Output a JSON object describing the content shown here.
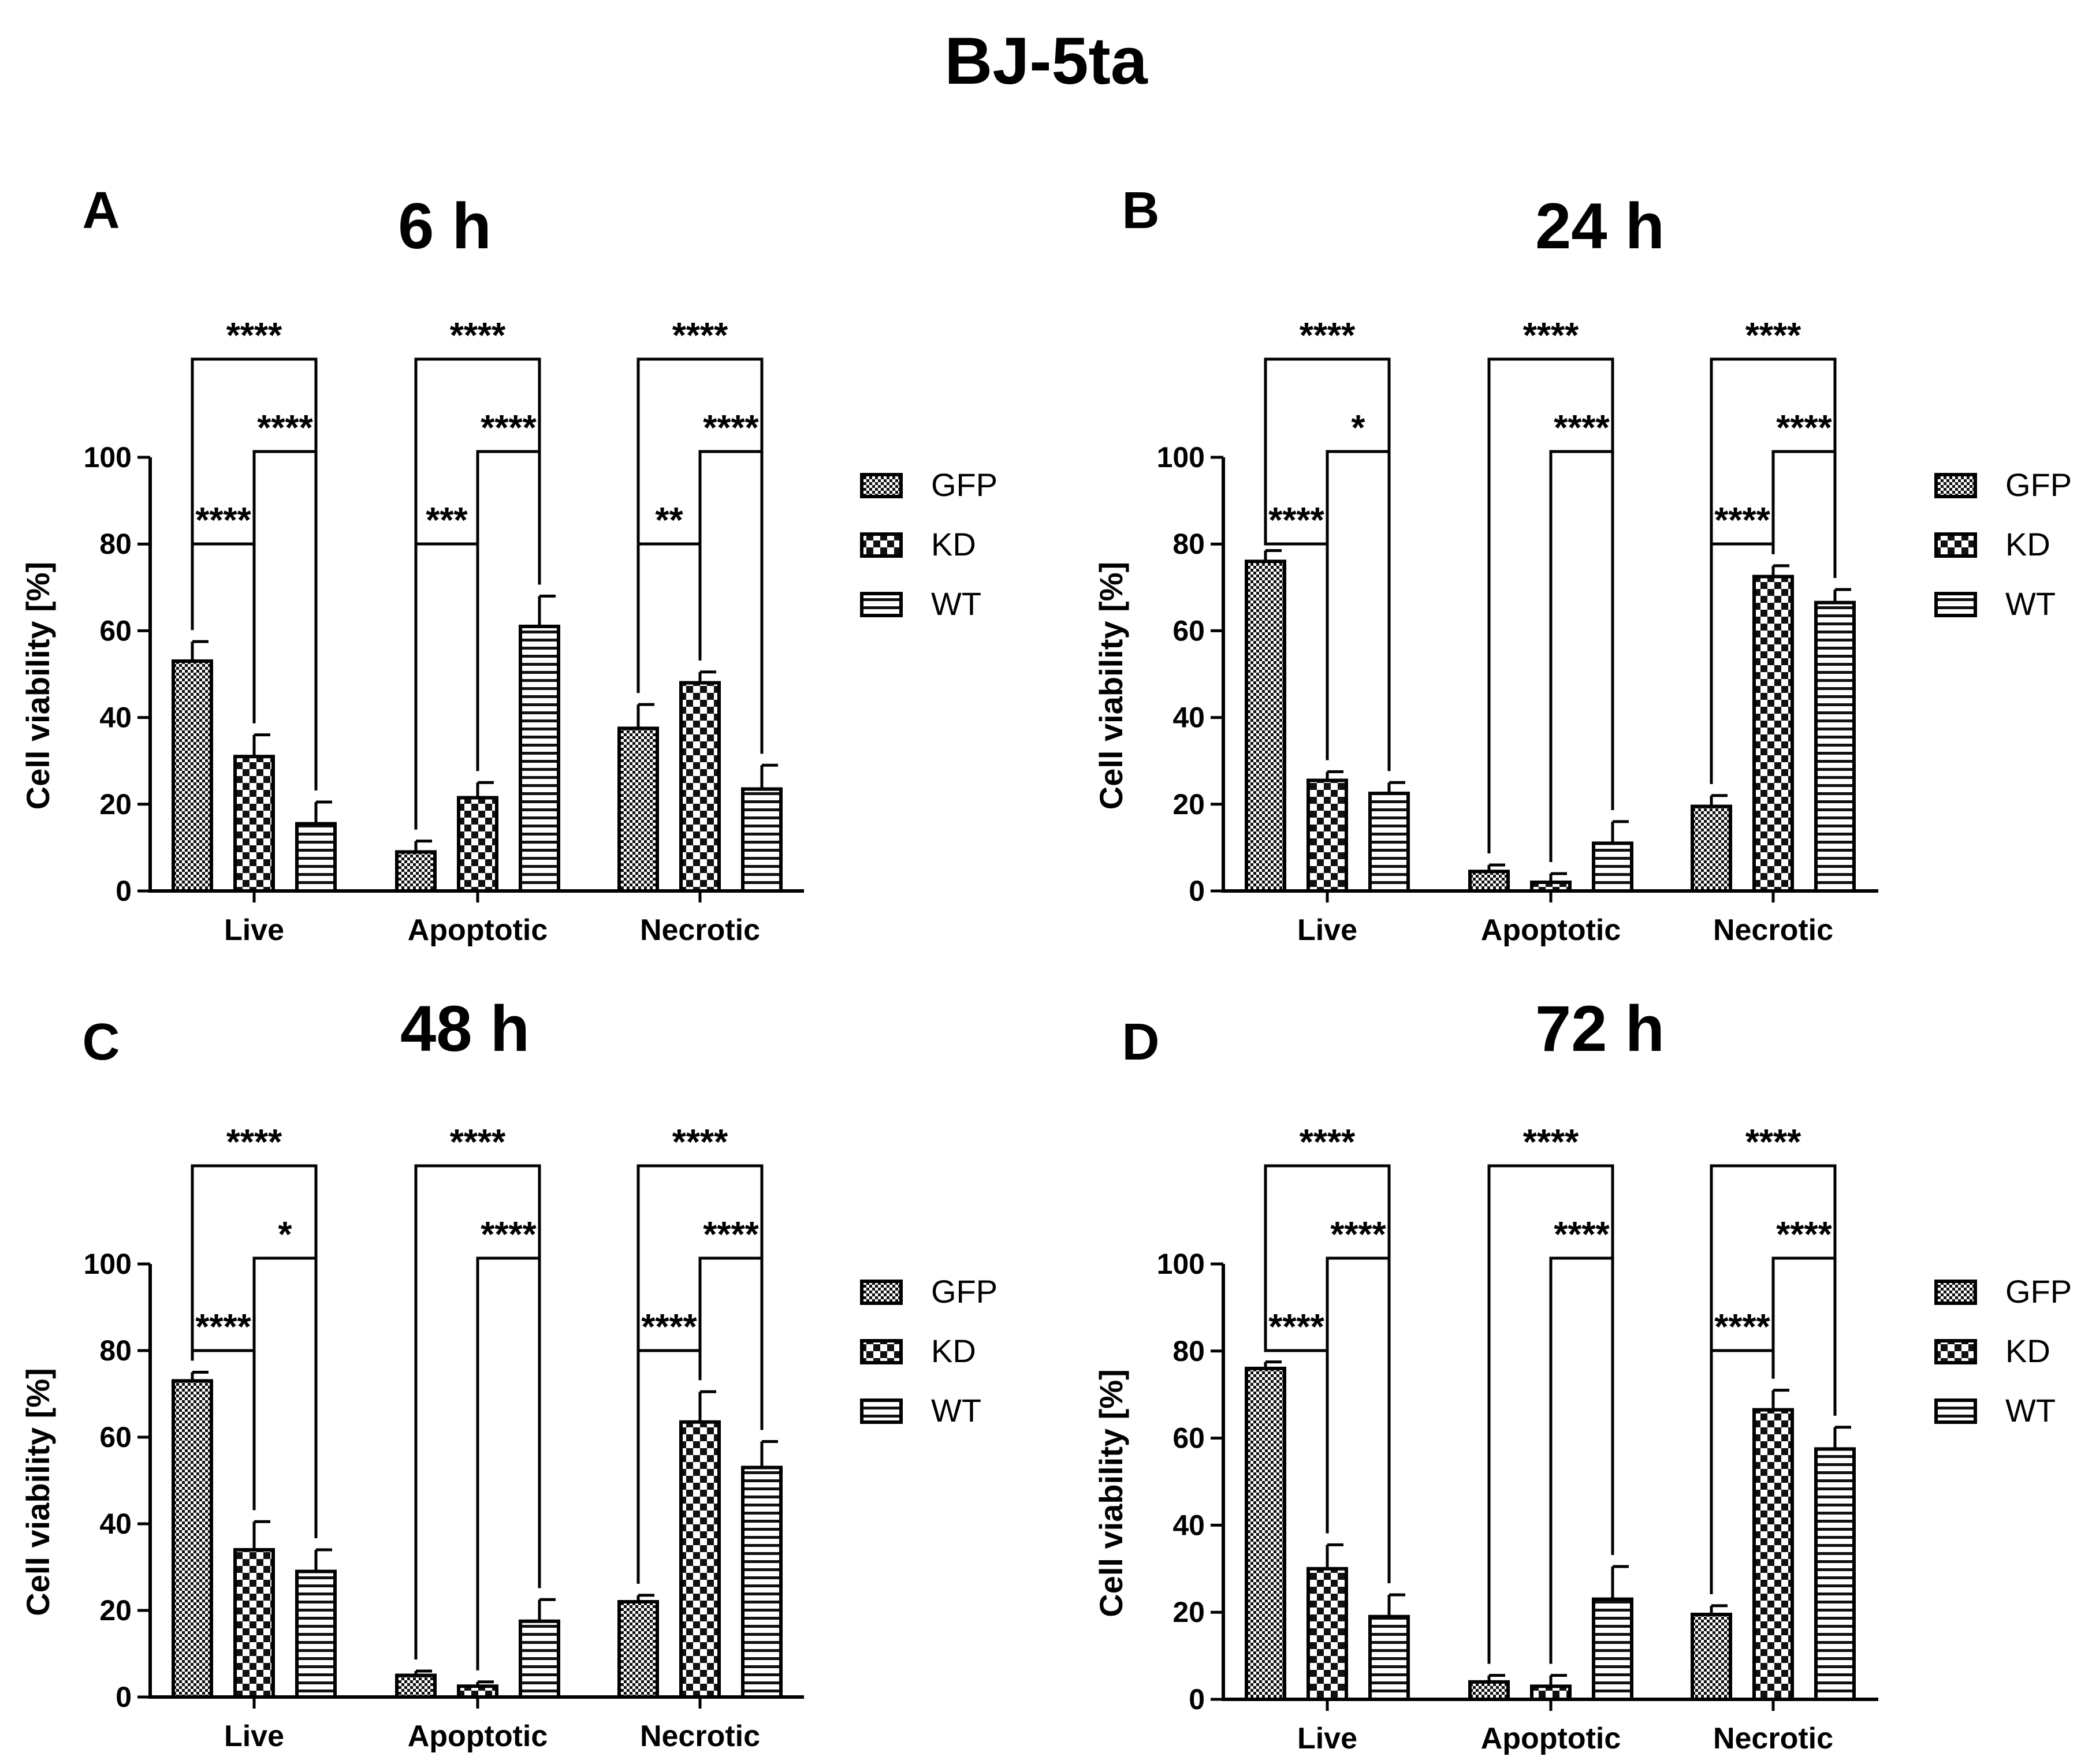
{
  "figure_title": "BJ-5ta",
  "chart_data": [
    {
      "panel": "A",
      "title": "6 h",
      "type": "bar",
      "ylabel": "Cell viability [%]",
      "ylim": [
        0,
        100
      ],
      "yticks": [
        0,
        20,
        40,
        60,
        80,
        100
      ],
      "categories": [
        "Live",
        "Apoptotic",
        "Necrotic"
      ],
      "series": [
        {
          "name": "GFP",
          "values": [
            53,
            9,
            37.5
          ],
          "errors": [
            4.5,
            2.5,
            5.5
          ]
        },
        {
          "name": "KD",
          "values": [
            31,
            21.5,
            48
          ],
          "errors": [
            5,
            3.5,
            2.5
          ]
        },
        {
          "name": "WT",
          "values": [
            15.5,
            61,
            23.5
          ],
          "errors": [
            5,
            7,
            5.5
          ]
        }
      ],
      "comparisons": [
        {
          "group": 0,
          "from": "GFP",
          "to": "WT",
          "label": "****"
        },
        {
          "group": 0,
          "from": "KD",
          "to": "WT",
          "label": "****"
        },
        {
          "group": 0,
          "from": "GFP",
          "to": "KD",
          "label": "****"
        },
        {
          "group": 1,
          "from": "GFP",
          "to": "WT",
          "label": "****"
        },
        {
          "group": 1,
          "from": "GFP",
          "to": "KD",
          "label": "***"
        },
        {
          "group": 1,
          "from": "KD",
          "to": "WT",
          "label": "****"
        },
        {
          "group": 2,
          "from": "GFP",
          "to": "WT",
          "label": "****"
        },
        {
          "group": 2,
          "from": "KD",
          "to": "WT",
          "label": "****"
        },
        {
          "group": 2,
          "from": "GFP",
          "to": "KD",
          "label": "**"
        }
      ],
      "legend": [
        "GFP",
        "KD",
        "WT"
      ],
      "legend_position": "right"
    },
    {
      "panel": "B",
      "title": "24 h",
      "type": "bar",
      "ylabel": "Cell viability [%]",
      "ylim": [
        0,
        100
      ],
      "yticks": [
        0,
        20,
        40,
        60,
        80,
        100
      ],
      "categories": [
        "Live",
        "Apoptotic",
        "Necrotic"
      ],
      "series": [
        {
          "name": "GFP",
          "values": [
            76,
            4.5,
            19.5
          ],
          "errors": [
            2.5,
            1.5,
            2.5
          ]
        },
        {
          "name": "KD",
          "values": [
            25.5,
            2,
            72.5
          ],
          "errors": [
            2,
            2,
            2.5
          ]
        },
        {
          "name": "WT",
          "values": [
            22.5,
            11,
            66.5
          ],
          "errors": [
            2.5,
            5,
            3
          ]
        }
      ],
      "comparisons": [
        {
          "group": 0,
          "from": "GFP",
          "to": "WT",
          "label": "****"
        },
        {
          "group": 0,
          "from": "KD",
          "to": "WT",
          "label": "*"
        },
        {
          "group": 0,
          "from": "GFP",
          "to": "KD",
          "label": "****"
        },
        {
          "group": 1,
          "from": "GFP",
          "to": "WT",
          "label": "****"
        },
        {
          "group": 1,
          "from": "KD",
          "to": "WT",
          "label": "****"
        },
        {
          "group": 2,
          "from": "GFP",
          "to": "WT",
          "label": "****"
        },
        {
          "group": 2,
          "from": "KD",
          "to": "WT",
          "label": "****"
        },
        {
          "group": 2,
          "from": "GFP",
          "to": "KD",
          "label": "****"
        }
      ],
      "legend": [
        "GFP",
        "KD",
        "WT"
      ],
      "legend_position": "right"
    },
    {
      "panel": "C",
      "title": "48 h",
      "type": "bar",
      "ylabel": "Cell viability [%]",
      "ylim": [
        0,
        100
      ],
      "yticks": [
        0,
        20,
        40,
        60,
        80,
        100
      ],
      "categories": [
        "Live",
        "Apoptotic",
        "Necrotic"
      ],
      "series": [
        {
          "name": "GFP",
          "values": [
            73,
            5,
            22
          ],
          "errors": [
            2,
            1,
            1.5
          ]
        },
        {
          "name": "KD",
          "values": [
            34,
            2.5,
            63.5
          ],
          "errors": [
            6.5,
            1,
            7
          ]
        },
        {
          "name": "WT",
          "values": [
            29,
            17.5,
            53
          ],
          "errors": [
            5,
            5,
            6
          ]
        }
      ],
      "comparisons": [
        {
          "group": 0,
          "from": "GFP",
          "to": "WT",
          "label": "****"
        },
        {
          "group": 0,
          "from": "KD",
          "to": "WT",
          "label": "*"
        },
        {
          "group": 0,
          "from": "GFP",
          "to": "KD",
          "label": "****"
        },
        {
          "group": 1,
          "from": "GFP",
          "to": "WT",
          "label": "****"
        },
        {
          "group": 1,
          "from": "KD",
          "to": "WT",
          "label": "****"
        },
        {
          "group": 2,
          "from": "GFP",
          "to": "WT",
          "label": "****"
        },
        {
          "group": 2,
          "from": "KD",
          "to": "WT",
          "label": "****"
        },
        {
          "group": 2,
          "from": "GFP",
          "to": "KD",
          "label": "****"
        }
      ],
      "legend": [
        "GFP",
        "KD",
        "WT"
      ],
      "legend_position": "right"
    },
    {
      "panel": "D",
      "title": "72 h",
      "type": "bar",
      "ylabel": "Cell viability [%]",
      "ylim": [
        0,
        100
      ],
      "yticks": [
        0,
        20,
        40,
        60,
        80,
        100
      ],
      "categories": [
        "Live",
        "Apoptotic",
        "Necrotic"
      ],
      "series": [
        {
          "name": "GFP",
          "values": [
            76,
            4,
            19.5
          ],
          "errors": [
            1.5,
            1.5,
            2
          ]
        },
        {
          "name": "KD",
          "values": [
            30,
            3,
            66.5
          ],
          "errors": [
            5.5,
            2.5,
            4.5
          ]
        },
        {
          "name": "WT",
          "values": [
            19,
            23,
            57.5
          ],
          "errors": [
            5,
            7.5,
            5
          ]
        }
      ],
      "comparisons": [
        {
          "group": 0,
          "from": "GFP",
          "to": "WT",
          "label": "****"
        },
        {
          "group": 0,
          "from": "KD",
          "to": "WT",
          "label": "****"
        },
        {
          "group": 0,
          "from": "GFP",
          "to": "KD",
          "label": "****"
        },
        {
          "group": 1,
          "from": "GFP",
          "to": "WT",
          "label": "****"
        },
        {
          "group": 1,
          "from": "KD",
          "to": "WT",
          "label": "****"
        },
        {
          "group": 2,
          "from": "GFP",
          "to": "WT",
          "label": "****"
        },
        {
          "group": 2,
          "from": "KD",
          "to": "WT",
          "label": "****"
        },
        {
          "group": 2,
          "from": "GFP",
          "to": "KD",
          "label": "****"
        }
      ],
      "legend": [
        "GFP",
        "KD",
        "WT"
      ],
      "legend_position": "right"
    }
  ]
}
